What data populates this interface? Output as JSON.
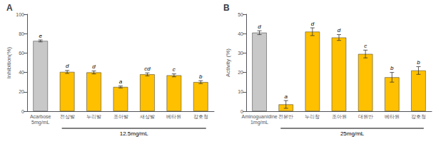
{
  "chart_data": [
    {
      "type": "bar",
      "title": "A",
      "ylabel": "Inhibition(%)",
      "categories": [
        "Acarbose\n5mg/mL",
        "전상발",
        "누리발",
        "조아발",
        "새상발",
        "베타원",
        "강호청"
      ],
      "values": [
        72.5,
        40.5,
        40.0,
        25.0,
        38.0,
        37.0,
        30.0
      ],
      "errors": [
        1.0,
        1.5,
        1.5,
        1.0,
        1.5,
        1.5,
        1.5
      ],
      "colors": [
        "#C8C8C8",
        "#FFC000",
        "#FFC000",
        "#FFC000",
        "#FFC000",
        "#FFC000",
        "#FFC000"
      ],
      "ylim": [
        0,
        100
      ],
      "yticks": [
        0,
        20,
        40,
        60,
        80,
        100
      ],
      "grid": false,
      "annotations": [
        {
          "text": "e",
          "category": "Acarbose\n5mg/mL"
        },
        {
          "text": "d",
          "category": "전상발"
        },
        {
          "text": "d",
          "category": "누리발"
        },
        {
          "text": "a",
          "category": "조아발"
        },
        {
          "text": "cd",
          "category": "새상발"
        },
        {
          "text": "c",
          "category": "베타원"
        },
        {
          "text": "b",
          "category": "강호청"
        },
        {
          "text": "12.5mg/mL",
          "span": [
            "전상발",
            "강호청"
          ]
        }
      ]
    },
    {
      "type": "bar",
      "title": "B",
      "ylabel": "Activity (%)",
      "categories": [
        "Aminoguanidine\n1mg/mL",
        "전분반",
        "누리창",
        "조아원",
        "대원반",
        "베타원",
        "강호청"
      ],
      "values": [
        40.5,
        3.5,
        41.0,
        38.0,
        29.5,
        17.5,
        21.0
      ],
      "errors": [
        1.0,
        2.0,
        2.0,
        1.5,
        2.0,
        2.5,
        2.0
      ],
      "colors": [
        "#C8C8C8",
        "#FFC000",
        "#FFC000",
        "#FFC000",
        "#FFC000",
        "#FFC000",
        "#FFC000"
      ],
      "ylim": [
        0,
        50
      ],
      "yticks": [
        0,
        10,
        20,
        30,
        40,
        50
      ],
      "grid": false,
      "annotations": [
        {
          "text": "d",
          "category": "Aminoguanidine\n1mg/mL"
        },
        {
          "text": "a",
          "category": "전분반"
        },
        {
          "text": "d",
          "category": "누리창"
        },
        {
          "text": "d",
          "category": "조아원"
        },
        {
          "text": "c",
          "category": "대원반"
        },
        {
          "text": "b",
          "category": "베타원"
        },
        {
          "text": "b",
          "category": "강호청"
        },
        {
          "text": "25mg/mL",
          "span": [
            "전분반",
            "강호청"
          ]
        }
      ]
    }
  ]
}
